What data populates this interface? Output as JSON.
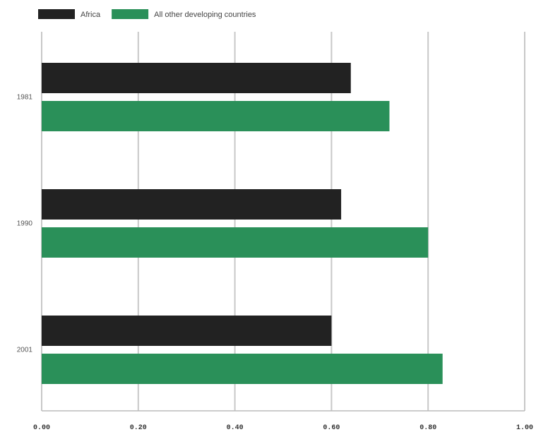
{
  "chart_data": {
    "type": "bar",
    "orientation": "horizontal",
    "categories": [
      "1981",
      "1990",
      "2001"
    ],
    "series": [
      {
        "name": "Africa",
        "color": "#222222",
        "values": [
          0.64,
          0.62,
          0.6
        ]
      },
      {
        "name": "All other developing countries",
        "color": "#2a9059",
        "values": [
          0.72,
          0.8,
          0.83
        ]
      }
    ],
    "xlim": [
      0,
      1.0
    ],
    "xticks": [
      0.0,
      0.2,
      0.4,
      0.6,
      0.8,
      1.0
    ],
    "xtick_labels": [
      "0.00",
      "0.20",
      "0.40",
      "0.60",
      "0.80",
      "1.00"
    ],
    "title": "",
    "xlabel": "",
    "ylabel": "",
    "grid": "vertical",
    "legend_position": "top-left"
  }
}
